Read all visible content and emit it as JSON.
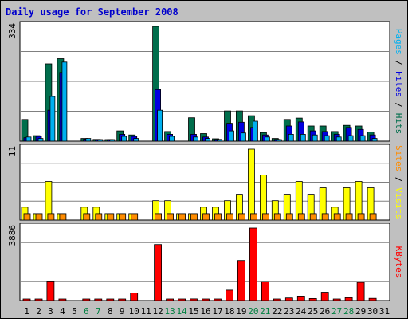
{
  "title": "Daily usage for September 2008",
  "colors": {
    "hits": "#006e4c",
    "files": "#0000e0",
    "pages": "#00b0f0",
    "visits": "#ffff00",
    "sites": "#ff8c00",
    "kbytes": "#ff0000",
    "weekend_label": "#008040",
    "weekday_label": "#000000",
    "panel_bg": "#ffffff"
  },
  "chart_data": [
    {
      "type": "bar",
      "panel": "hits-files-pages",
      "ymax_label": "334",
      "ylim": [
        0,
        334
      ],
      "right_label_parts": [
        {
          "text": "Pages",
          "color": "#00b0f0"
        },
        {
          "text": " / ",
          "color": "#000000"
        },
        {
          "text": "Files",
          "color": "#0000e0"
        },
        {
          "text": " / ",
          "color": "#000000"
        },
        {
          "text": "Hits",
          "color": "#006e4c"
        }
      ],
      "series": [
        {
          "name": "Hits",
          "values": [
            63,
            16,
            225,
            240,
            0,
            8,
            5,
            3,
            30,
            18,
            0,
            334,
            28,
            0,
            68,
            22,
            7,
            88,
            88,
            74,
            25,
            8,
            63,
            67,
            44,
            44,
            28,
            46,
            44,
            27,
            0
          ]
        },
        {
          "name": "Files",
          "values": [
            10,
            14,
            90,
            200,
            0,
            6,
            3,
            2,
            20,
            14,
            0,
            150,
            20,
            0,
            20,
            12,
            4,
            52,
            55,
            40,
            18,
            5,
            44,
            56,
            30,
            28,
            20,
            40,
            34,
            18,
            0
          ]
        },
        {
          "name": "Pages",
          "values": [
            12,
            8,
            130,
            230,
            0,
            8,
            4,
            2,
            14,
            8,
            0,
            90,
            14,
            0,
            12,
            8,
            5,
            30,
            24,
            58,
            12,
            4,
            20,
            20,
            18,
            16,
            12,
            16,
            16,
            8,
            0
          ]
        }
      ]
    },
    {
      "type": "bar",
      "panel": "visits-sites",
      "ymax_label": "11",
      "ylim": [
        0,
        11
      ],
      "right_label_parts": [
        {
          "text": "Sites",
          "color": "#ff8c00"
        },
        {
          "text": " / ",
          "color": "#000000"
        },
        {
          "text": "Visits",
          "color": "#ffff00"
        }
      ],
      "series": [
        {
          "name": "Visits",
          "values": [
            2,
            1,
            6,
            1,
            0,
            2,
            2,
            1,
            1,
            1,
            0,
            3,
            3,
            1,
            1,
            2,
            2,
            3,
            4,
            11,
            7,
            3,
            4,
            6,
            4,
            5,
            2,
            5,
            6,
            5,
            0
          ]
        },
        {
          "name": "Sites",
          "values": [
            1,
            1,
            1,
            1,
            0,
            1,
            1,
            1,
            1,
            1,
            0,
            1,
            1,
            1,
            1,
            1,
            1,
            1,
            1,
            1,
            1,
            1,
            1,
            1,
            1,
            1,
            1,
            1,
            1,
            1,
            0
          ]
        }
      ]
    },
    {
      "type": "bar",
      "panel": "kbytes",
      "ymax_label": "3886",
      "ylim": [
        0,
        3886
      ],
      "right_label_parts": [
        {
          "text": "KBytes",
          "color": "#ff0000"
        }
      ],
      "series": [
        {
          "name": "KBytes",
          "values": [
            40,
            60,
            1050,
            40,
            0,
            30,
            20,
            30,
            80,
            400,
            0,
            3000,
            80,
            50,
            90,
            70,
            30,
            560,
            2150,
            3886,
            1020,
            50,
            140,
            240,
            110,
            450,
            50,
            160,
            980,
            120,
            0
          ]
        }
      ]
    }
  ],
  "x_axis": {
    "days": [
      "1",
      "2",
      "3",
      "4",
      "5",
      "6",
      "7",
      "8",
      "9",
      "10",
      "11",
      "12",
      "13",
      "14",
      "15",
      "16",
      "17",
      "18",
      "19",
      "20",
      "21",
      "22",
      "23",
      "24",
      "25",
      "26",
      "27",
      "28",
      "29",
      "30",
      "31"
    ],
    "weekend": [
      6,
      7,
      13,
      14,
      20,
      21,
      27,
      28
    ]
  }
}
